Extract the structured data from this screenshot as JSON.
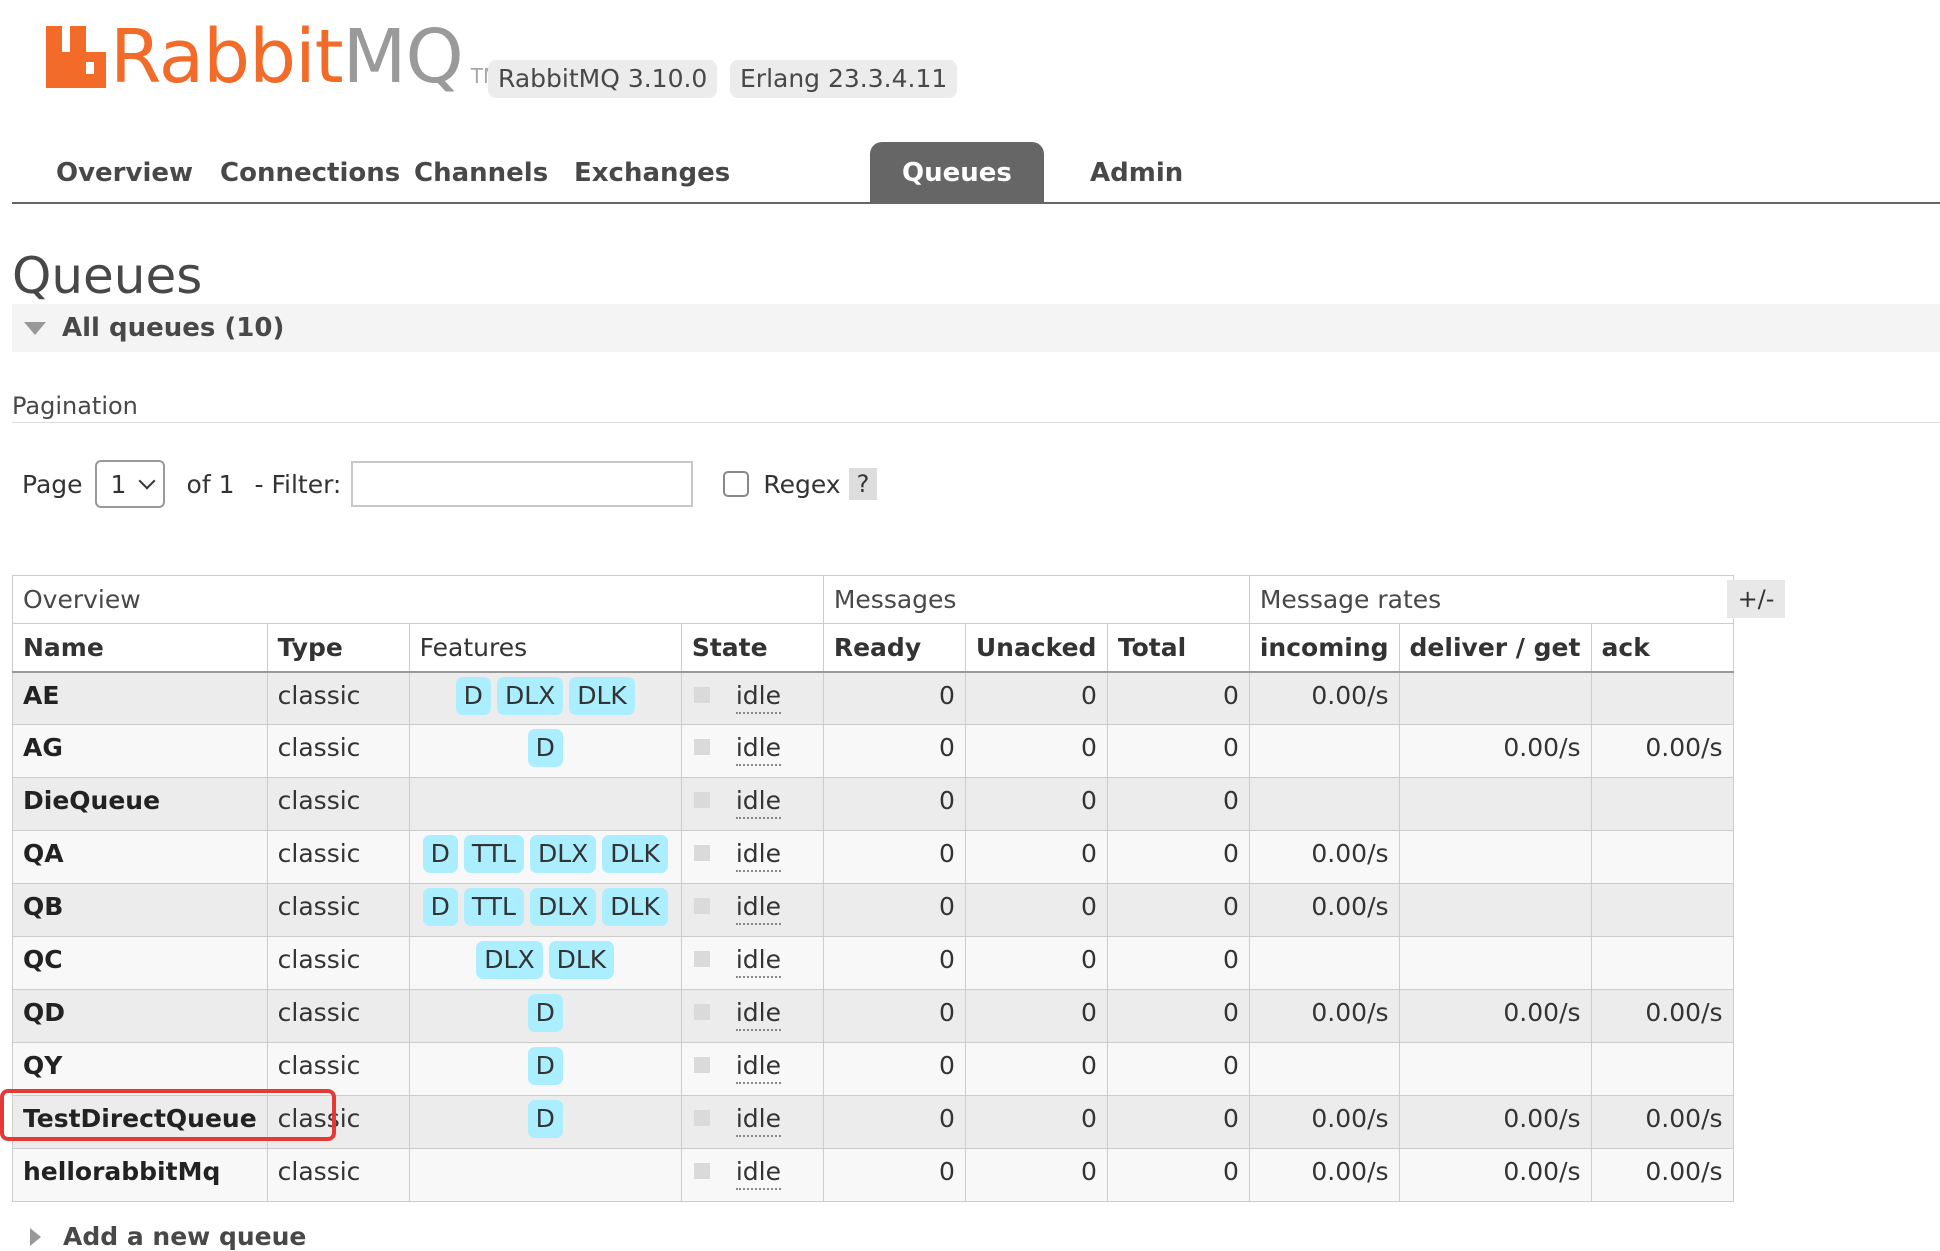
{
  "header": {
    "logo_text_rabbit": "Rabbit",
    "logo_text_mq": "MQ",
    "logo_tm": "TM",
    "version_rabbitmq": "RabbitMQ 3.10.0",
    "version_erlang": "Erlang 23.3.4.11"
  },
  "tabs": [
    {
      "label": "Overview"
    },
    {
      "label": "Connections"
    },
    {
      "label": "Channels"
    },
    {
      "label": "Exchanges"
    },
    {
      "label": "Queues",
      "active": true
    },
    {
      "label": "Admin"
    }
  ],
  "page_title": "Queues",
  "section": {
    "label": "All queues (10)"
  },
  "pagination": {
    "label": "Pagination",
    "page_label": "Page",
    "page_value": "1",
    "of_label": "of 1",
    "filter_label": "- Filter:",
    "filter_value": "",
    "regex_label": "Regex",
    "help_label": "?"
  },
  "table": {
    "groups": [
      "Overview",
      "Messages",
      "Message rates"
    ],
    "columns": [
      "Name",
      "Type",
      "Features",
      "State",
      "Ready",
      "Unacked",
      "Total",
      "incoming",
      "deliver / get",
      "ack"
    ],
    "toggle_label": "+/-",
    "rows": [
      {
        "name": "AE",
        "type": "classic",
        "features": [
          "D",
          "DLX",
          "DLK"
        ],
        "state": "idle",
        "ready": "0",
        "unacked": "0",
        "total": "0",
        "incoming": "0.00/s",
        "deliver_get": "",
        "ack": ""
      },
      {
        "name": "AG",
        "type": "classic",
        "features": [
          "D"
        ],
        "state": "idle",
        "ready": "0",
        "unacked": "0",
        "total": "0",
        "incoming": "",
        "deliver_get": "0.00/s",
        "ack": "0.00/s"
      },
      {
        "name": "DieQueue",
        "type": "classic",
        "features": [],
        "state": "idle",
        "ready": "0",
        "unacked": "0",
        "total": "0",
        "incoming": "",
        "deliver_get": "",
        "ack": ""
      },
      {
        "name": "QA",
        "type": "classic",
        "features": [
          "D",
          "TTL",
          "DLX",
          "DLK"
        ],
        "state": "idle",
        "ready": "0",
        "unacked": "0",
        "total": "0",
        "incoming": "0.00/s",
        "deliver_get": "",
        "ack": ""
      },
      {
        "name": "QB",
        "type": "classic",
        "features": [
          "D",
          "TTL",
          "DLX",
          "DLK"
        ],
        "state": "idle",
        "ready": "0",
        "unacked": "0",
        "total": "0",
        "incoming": "0.00/s",
        "deliver_get": "",
        "ack": ""
      },
      {
        "name": "QC",
        "type": "classic",
        "features": [
          "DLX",
          "DLK"
        ],
        "state": "idle",
        "ready": "0",
        "unacked": "0",
        "total": "0",
        "incoming": "",
        "deliver_get": "",
        "ack": ""
      },
      {
        "name": "QD",
        "type": "classic",
        "features": [
          "D"
        ],
        "state": "idle",
        "ready": "0",
        "unacked": "0",
        "total": "0",
        "incoming": "0.00/s",
        "deliver_get": "0.00/s",
        "ack": "0.00/s"
      },
      {
        "name": "QY",
        "type": "classic",
        "features": [
          "D"
        ],
        "state": "idle",
        "ready": "0",
        "unacked": "0",
        "total": "0",
        "incoming": "",
        "deliver_get": "",
        "ack": ""
      },
      {
        "name": "TestDirectQueue",
        "type": "classic",
        "features": [
          "D"
        ],
        "state": "idle",
        "ready": "0",
        "unacked": "0",
        "total": "0",
        "incoming": "0.00/s",
        "deliver_get": "0.00/s",
        "ack": "0.00/s"
      },
      {
        "name": "hellorabbitMq",
        "type": "classic",
        "features": [],
        "state": "idle",
        "ready": "0",
        "unacked": "0",
        "total": "0",
        "incoming": "0.00/s",
        "deliver_get": "0.00/s",
        "ack": "0.00/s"
      }
    ]
  },
  "add_queue_label": "Add a new queue",
  "colors": {
    "brand_orange": "#f26b29",
    "tab_active_bg": "#666666",
    "feature_badge_bg": "#aaeeff",
    "highlight_red": "#e53935"
  },
  "icons": {
    "logo": "rabbitmq-logo-icon",
    "collapse": "triangle-down-icon",
    "expand": "triangle-right-icon",
    "dropdown": "chevron-down-icon"
  }
}
